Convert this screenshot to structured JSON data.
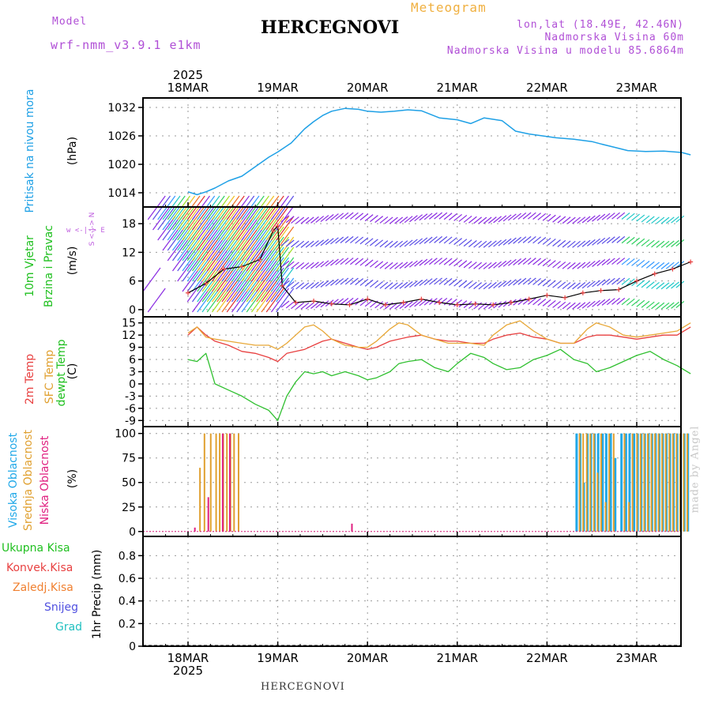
{
  "header": {
    "title": "HERCEGNOVI",
    "meteogram": "Meteogram",
    "model_label": "Model",
    "model_name": "wrf-nmm_v3.9.1 e1km",
    "lonlat": "lon,lat (18.49E, 42.46N)",
    "elevation": "Nadmorska Visina 60m",
    "model_elevation": "Nadmorska Visina u modelu 85.6864m"
  },
  "footer": {
    "station": "HERCEGNOVI",
    "watermark": "made by Angel"
  },
  "axis": {
    "year": "2025",
    "days": [
      "18MAR",
      "19MAR",
      "20MAR",
      "21MAR",
      "22MAR",
      "23MAR"
    ]
  },
  "panel_labels": {
    "pressure": {
      "name": "Pritisak na nivou mora",
      "unit": "(hPa)"
    },
    "wind": {
      "name1": "10m Vjetar",
      "name2": "Brzina i Pravac",
      "unit": "(m/s)",
      "compass": "w <-|-> E",
      "compass_v": "S <-|-> N"
    },
    "temp": {
      "t2m": "2m Temp",
      "sfc": "SFC Temp",
      "dew": "dewpt Temp",
      "unit": "(C)"
    },
    "cloud": {
      "high": "Visoka Oblacnost",
      "mid": "Srednja Oblacnost",
      "low": "Niska Oblacnost",
      "unit": "(%)"
    },
    "precip": {
      "total": "Ukupna Kisa",
      "conv": "Konvek.Kisa",
      "frz": "Zaledj.Kisa",
      "snow": "Snijeg",
      "hail": "Grad",
      "unit": "1hr Precip (mm)"
    }
  },
  "colors": {
    "pressure": "#1ea0e6",
    "t2m": "#e84040",
    "sfc": "#e8a838",
    "dew": "#30c030",
    "high": "#20a8e8",
    "mid": "#e0a030",
    "low": "#e02080",
    "wind_label": "#20c020",
    "total": "#20c020",
    "conv": "#e84040",
    "frz": "#f08030",
    "snow": "#5050e0",
    "hail": "#20c0c0"
  },
  "chart_data": [
    {
      "type": "line",
      "name": "pressure",
      "ylabel": "(hPa)",
      "yticks": [
        1014,
        1020,
        1026,
        1032
      ],
      "ylim": [
        1011,
        1034
      ],
      "x_days": [
        0.0,
        0.1,
        0.2,
        0.3,
        0.45,
        0.6,
        0.75,
        0.9,
        1.0,
        1.15,
        1.3,
        1.4,
        1.5,
        1.6,
        1.75,
        1.9,
        2.0,
        2.15,
        2.3,
        2.45,
        2.6,
        2.8,
        3.0,
        3.15,
        3.3,
        3.5,
        3.65,
        3.8,
        3.95,
        4.1,
        4.3,
        4.5,
        4.6,
        4.75,
        4.9,
        5.1,
        5.3,
        5.5,
        5.6
      ],
      "values": [
        1014.2,
        1013.6,
        1014.2,
        1015.0,
        1016.5,
        1017.5,
        1019.5,
        1021.5,
        1022.6,
        1024.5,
        1027.5,
        1029.0,
        1030.3,
        1031.2,
        1031.8,
        1031.6,
        1031.2,
        1031.0,
        1031.2,
        1031.5,
        1031.3,
        1029.8,
        1029.4,
        1028.6,
        1029.8,
        1029.2,
        1027.0,
        1026.4,
        1026.0,
        1025.6,
        1025.3,
        1024.8,
        1024.3,
        1023.6,
        1022.9,
        1022.7,
        1022.8,
        1022.5,
        1022.0
      ]
    },
    {
      "type": "line",
      "name": "wind",
      "ylabel": "(m/s)",
      "yticks": [
        0,
        6,
        12,
        18
      ],
      "ylim": [
        -1.5,
        21.5
      ],
      "x_days": [
        0.0,
        0.2,
        0.4,
        0.6,
        0.8,
        0.95,
        1.0,
        1.05,
        1.2,
        1.4,
        1.6,
        1.8,
        2.0,
        2.2,
        2.4,
        2.6,
        2.8,
        3.0,
        3.2,
        3.4,
        3.6,
        3.8,
        4.0,
        4.2,
        4.4,
        4.6,
        4.8,
        5.0,
        5.2,
        5.4,
        5.6
      ],
      "values": [
        3.5,
        5.5,
        8.5,
        9.0,
        10.5,
        16.5,
        17.5,
        5.0,
        1.5,
        1.8,
        1.2,
        1.0,
        2.2,
        1.0,
        1.5,
        2.2,
        1.5,
        1.0,
        1.2,
        1.0,
        1.5,
        2.2,
        3.0,
        2.5,
        3.5,
        4.0,
        4.2,
        6.0,
        7.5,
        8.5,
        10.0
      ]
    },
    {
      "type": "line",
      "name": "temperature",
      "ylabel": "(C)",
      "yticks": [
        -9,
        -6,
        -3,
        0,
        3,
        6,
        9,
        12,
        15
      ],
      "ylim": [
        -10.5,
        16.5
      ],
      "x_days": [
        0.0,
        0.1,
        0.2,
        0.3,
        0.45,
        0.6,
        0.75,
        0.9,
        1.0,
        1.1,
        1.2,
        1.3,
        1.4,
        1.5,
        1.6,
        1.75,
        1.9,
        2.0,
        2.1,
        2.25,
        2.35,
        2.45,
        2.6,
        2.75,
        2.9,
        3.0,
        3.15,
        3.3,
        3.4,
        3.55,
        3.7,
        3.85,
        4.0,
        4.15,
        4.3,
        4.45,
        4.55,
        4.7,
        4.85,
        5.0,
        5.15,
        5.3,
        5.45,
        5.6
      ],
      "series": [
        {
          "name": "2m Temp",
          "values": [
            12.0,
            14.0,
            12.0,
            10.5,
            9.5,
            8.0,
            7.5,
            6.5,
            5.5,
            7.5,
            8.0,
            8.5,
            9.5,
            10.5,
            11.0,
            10.0,
            9.0,
            8.5,
            9.0,
            10.5,
            11.0,
            11.5,
            12.0,
            11.0,
            10.5,
            10.5,
            10.0,
            10.0,
            11.0,
            12.0,
            12.5,
            11.5,
            11.0,
            10.0,
            10.0,
            11.5,
            12.0,
            12.0,
            11.5,
            11.0,
            11.5,
            12.0,
            12.0,
            14.0
          ]
        },
        {
          "name": "SFC Temp",
          "values": [
            12.5,
            14.0,
            11.5,
            11.0,
            10.5,
            10.0,
            9.5,
            9.5,
            8.5,
            10.0,
            12.0,
            14.0,
            14.5,
            13.0,
            11.0,
            9.5,
            9.0,
            9.0,
            10.5,
            13.5,
            15.0,
            14.5,
            12.0,
            11.0,
            10.0,
            10.0,
            10.0,
            9.5,
            12.0,
            14.5,
            15.5,
            13.0,
            11.0,
            10.0,
            10.0,
            13.5,
            15.0,
            14.0,
            12.0,
            11.5,
            12.0,
            12.5,
            13.0,
            15.0
          ]
        },
        {
          "name": "dewpt Temp",
          "values": [
            6.0,
            5.5,
            7.5,
            0.0,
            -1.5,
            -3.0,
            -5.0,
            -6.5,
            -9.0,
            -3.0,
            0.5,
            3.0,
            2.5,
            3.0,
            2.0,
            3.0,
            2.0,
            1.0,
            1.5,
            3.0,
            5.0,
            5.5,
            6.0,
            4.0,
            3.0,
            5.0,
            7.5,
            6.5,
            5.0,
            3.5,
            4.0,
            6.0,
            7.0,
            8.5,
            6.0,
            5.0,
            3.0,
            4.0,
            5.5,
            7.0,
            8.0,
            6.0,
            4.5,
            2.5
          ]
        }
      ]
    },
    {
      "type": "bar",
      "name": "cloud",
      "ylabel": "(%)",
      "yticks": [
        0,
        25,
        50,
        75,
        100
      ],
      "ylim": [
        -5,
        107
      ],
      "series": [
        {
          "name": "Visoka Oblacnost",
          "x_days": [
            4.33,
            4.37,
            4.41,
            4.45,
            4.49,
            4.53,
            4.57,
            4.62,
            4.66,
            4.71,
            4.76,
            4.83,
            4.88,
            4.92,
            4.97,
            5.01,
            5.05,
            5.09,
            5.13,
            5.17,
            5.21,
            5.25,
            5.29,
            5.33,
            5.37,
            5.41,
            5.45,
            5.49,
            5.53,
            5.57
          ],
          "values": [
            100,
            100,
            50,
            100,
            100,
            100,
            100,
            100,
            100,
            100,
            75,
            100,
            100,
            100,
            100,
            100,
            100,
            100,
            100,
            100,
            100,
            100,
            100,
            100,
            100,
            100,
            100,
            100,
            100,
            100
          ]
        },
        {
          "name": "Srednja Oblacnost",
          "x_days": [
            0.12,
            0.17,
            0.24,
            0.3,
            0.34,
            0.38,
            0.42,
            0.46,
            0.5,
            0.55,
            4.35,
            4.39,
            4.43,
            4.47,
            4.51,
            4.55,
            4.59,
            4.64,
            4.68,
            4.73,
            4.85,
            4.9,
            4.94,
            4.99,
            5.03,
            5.07,
            5.11,
            5.15,
            5.19,
            5.23,
            5.27,
            5.31,
            5.35,
            5.39,
            5.43,
            5.47,
            5.51,
            5.55
          ],
          "values": [
            65,
            100,
            100,
            100,
            100,
            100,
            100,
            100,
            100,
            100,
            100,
            100,
            100,
            100,
            100,
            60,
            100,
            30,
            100,
            100,
            100,
            30,
            100,
            100,
            100,
            100,
            100,
            100,
            100,
            100,
            100,
            100,
            100,
            100,
            100,
            100,
            100,
            100
          ]
        },
        {
          "name": "Niska Oblacnost",
          "x_days": [
            0.05,
            0.2,
            0.36,
            0.44,
            1.8,
            4.4,
            4.6,
            4.9,
            5.2
          ],
          "values": [
            4,
            35,
            100,
            100,
            8,
            0,
            0,
            0,
            0
          ]
        }
      ]
    },
    {
      "type": "bar",
      "name": "precip",
      "ylabel": "1hr Precip (mm)",
      "yticks": [
        0,
        0.2,
        0.4,
        0.6,
        0.8
      ],
      "ylim": [
        0,
        0.97
      ],
      "x_days": [],
      "values": []
    }
  ]
}
